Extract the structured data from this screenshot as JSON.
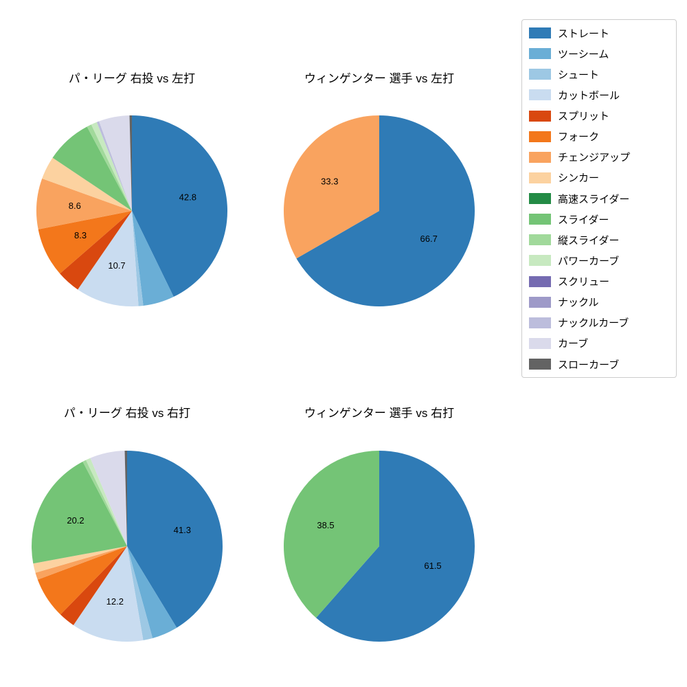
{
  "figure": {
    "background": "#ffffff"
  },
  "legend": {
    "items": [
      {
        "label": "ストレート",
        "color": "#2f7bb6"
      },
      {
        "label": "ツーシーム",
        "color": "#6aaed6"
      },
      {
        "label": "シュート",
        "color": "#9dc8e4"
      },
      {
        "label": "カットボール",
        "color": "#c9dcf0"
      },
      {
        "label": "スプリット",
        "color": "#d9480f"
      },
      {
        "label": "フォーク",
        "color": "#f3771b"
      },
      {
        "label": "チェンジアップ",
        "color": "#f9a35f"
      },
      {
        "label": "シンカー",
        "color": "#fcd2a0"
      },
      {
        "label": "高速スライダー",
        "color": "#238b45"
      },
      {
        "label": "スライダー",
        "color": "#74c476"
      },
      {
        "label": "縦スライダー",
        "color": "#a1d99b"
      },
      {
        "label": "パワーカーブ",
        "color": "#c7e9c0"
      },
      {
        "label": "スクリュー",
        "color": "#756bb1"
      },
      {
        "label": "ナックル",
        "color": "#9e9ac8"
      },
      {
        "label": "ナックルカーブ",
        "color": "#bcbddc"
      },
      {
        "label": "カーブ",
        "color": "#dadaeb"
      },
      {
        "label": "スローカーブ",
        "color": "#636363"
      }
    ]
  },
  "chart_data": [
    {
      "type": "pie",
      "title": "パ・リーグ 右投 vs 左打",
      "start_angle": "top",
      "direction": "clockwise",
      "label_distance": 0.6,
      "slices": [
        {
          "name": "ストレート",
          "value": 42.8,
          "label": "42.8"
        },
        {
          "name": "ツーシーム",
          "value": 5.3,
          "label": ""
        },
        {
          "name": "シュート",
          "value": 0.8,
          "label": ""
        },
        {
          "name": "カットボール",
          "value": 10.7,
          "label": "10.7"
        },
        {
          "name": "スプリット",
          "value": 4.0,
          "label": ""
        },
        {
          "name": "フォーク",
          "value": 8.3,
          "label": "8.3"
        },
        {
          "name": "チェンジアップ",
          "value": 8.6,
          "label": "8.6"
        },
        {
          "name": "シンカー",
          "value": 3.9,
          "label": ""
        },
        {
          "name": "スライダー",
          "value": 7.8,
          "label": ""
        },
        {
          "name": "縦スライダー",
          "value": 0.8,
          "label": ""
        },
        {
          "name": "パワーカーブ",
          "value": 1.0,
          "label": ""
        },
        {
          "name": "ナックルカーブ",
          "value": 0.4,
          "label": ""
        },
        {
          "name": "カーブ",
          "value": 5.2,
          "label": ""
        },
        {
          "name": "スローカーブ",
          "value": 0.4,
          "label": ""
        }
      ]
    },
    {
      "type": "pie",
      "title": "ウィンゲンター 選手 vs 左打",
      "start_angle": "top",
      "direction": "clockwise",
      "label_distance": 0.6,
      "slices": [
        {
          "name": "ストレート",
          "value": 66.7,
          "label": "66.7"
        },
        {
          "name": "チェンジアップ",
          "value": 33.3,
          "label": "33.3"
        }
      ]
    },
    {
      "type": "pie",
      "title": "パ・リーグ 右投 vs 右打",
      "start_angle": "top",
      "direction": "clockwise",
      "label_distance": 0.6,
      "slices": [
        {
          "name": "ストレート",
          "value": 41.3,
          "label": "41.3"
        },
        {
          "name": "ツーシーム",
          "value": 4.4,
          "label": ""
        },
        {
          "name": "シュート",
          "value": 1.6,
          "label": ""
        },
        {
          "name": "カットボール",
          "value": 12.2,
          "label": "12.2"
        },
        {
          "name": "スプリット",
          "value": 2.8,
          "label": ""
        },
        {
          "name": "フォーク",
          "value": 7.0,
          "label": ""
        },
        {
          "name": "チェンジアップ",
          "value": 1.2,
          "label": ""
        },
        {
          "name": "シンカー",
          "value": 1.6,
          "label": ""
        },
        {
          "name": "スライダー",
          "value": 20.2,
          "label": "20.2"
        },
        {
          "name": "縦スライダー",
          "value": 0.6,
          "label": ""
        },
        {
          "name": "パワーカーブ",
          "value": 0.8,
          "label": ""
        },
        {
          "name": "カーブ",
          "value": 5.9,
          "label": ""
        },
        {
          "name": "スローカーブ",
          "value": 0.4,
          "label": ""
        }
      ]
    },
    {
      "type": "pie",
      "title": "ウィンゲンター 選手 vs 右打",
      "start_angle": "top",
      "direction": "clockwise",
      "label_distance": 0.6,
      "slices": [
        {
          "name": "ストレート",
          "value": 61.5,
          "label": "61.5"
        },
        {
          "name": "スライダー",
          "value": 38.5,
          "label": "38.5"
        }
      ]
    }
  ]
}
